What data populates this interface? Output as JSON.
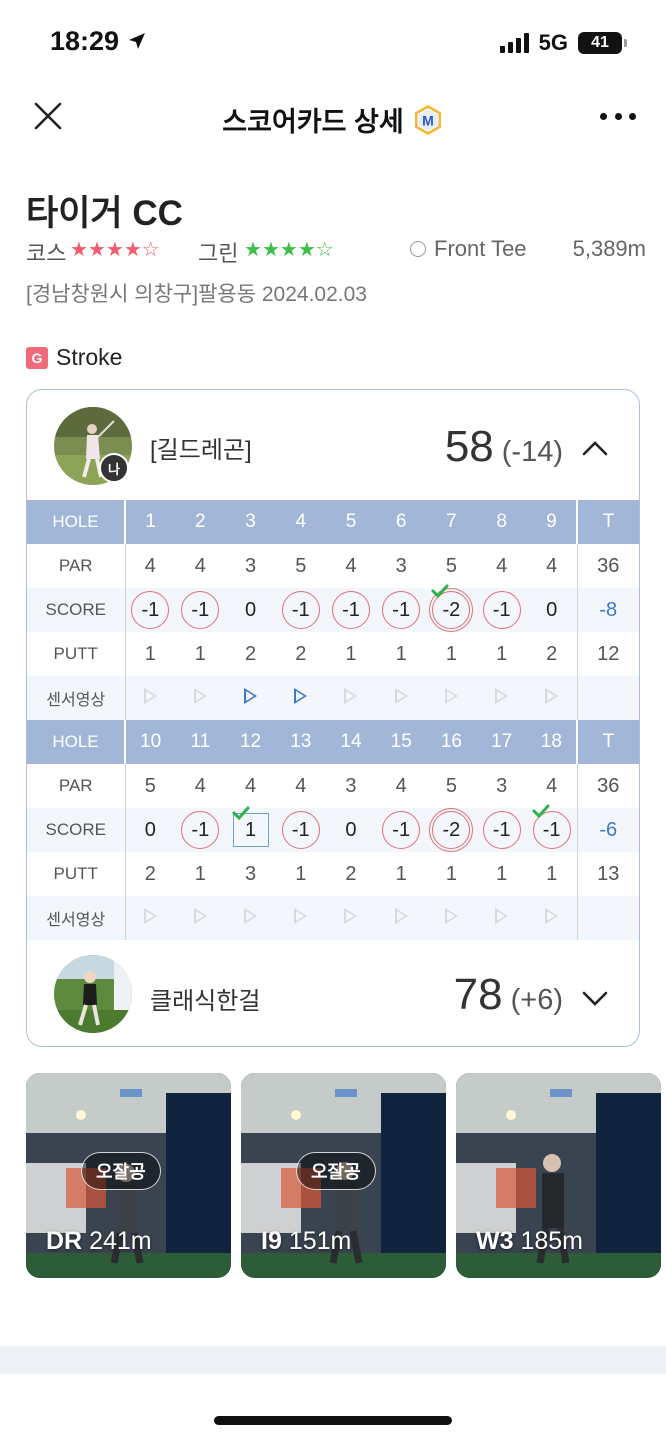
{
  "status": {
    "time": "18:29",
    "network": "5G",
    "battery": "41"
  },
  "nav": {
    "title": "스코어카드 상세",
    "badge_letter": "M"
  },
  "course": {
    "name": "타이거 CC",
    "course_label": "코스",
    "course_rating": 4,
    "green_label": "그린",
    "green_rating": 4,
    "tee": "Front Tee",
    "distance": "5,389m",
    "location": "[경남창원시 의창구]팔용동 2024.02.03"
  },
  "mode": {
    "badge": "G",
    "label": "Stroke"
  },
  "players": [
    {
      "name": "[길드레곤]",
      "score": "58",
      "diff": "(-14)",
      "me_badge": "나",
      "expanded": true
    },
    {
      "name": "클래식한걸",
      "score": "78",
      "diff": "(+6)",
      "expanded": false
    }
  ],
  "scorecard": {
    "labels": {
      "hole": "HOLE",
      "par": "PAR",
      "score": "SCORE",
      "putt": "PUTT",
      "sensor": "센서영상",
      "total": "T"
    },
    "front": {
      "holes": [
        "1",
        "2",
        "3",
        "4",
        "5",
        "6",
        "7",
        "8",
        "9"
      ],
      "par": [
        "4",
        "4",
        "3",
        "5",
        "4",
        "3",
        "5",
        "4",
        "4"
      ],
      "par_total": "36",
      "score": [
        "-1",
        "-1",
        "0",
        "-1",
        "-1",
        "-1",
        "-2",
        "-1",
        "0"
      ],
      "score_marks": [
        "circle",
        "circle",
        "none",
        "circle",
        "circle",
        "circle",
        "double",
        "circle",
        "none"
      ],
      "score_checks": [
        false,
        false,
        false,
        false,
        false,
        false,
        true,
        false,
        false
      ],
      "score_total": "-8",
      "putt": [
        "1",
        "1",
        "2",
        "2",
        "1",
        "1",
        "1",
        "1",
        "2"
      ],
      "putt_total": "12",
      "sensor_active": [
        false,
        false,
        true,
        true,
        false,
        false,
        false,
        false,
        false
      ]
    },
    "back": {
      "holes": [
        "10",
        "11",
        "12",
        "13",
        "14",
        "15",
        "16",
        "17",
        "18"
      ],
      "par": [
        "5",
        "4",
        "4",
        "4",
        "3",
        "4",
        "5",
        "3",
        "4"
      ],
      "par_total": "36",
      "score": [
        "0",
        "-1",
        "1",
        "-1",
        "0",
        "-1",
        "-2",
        "-1",
        "-1"
      ],
      "score_marks": [
        "none",
        "circle",
        "square",
        "circle",
        "none",
        "circle",
        "double",
        "circle",
        "circle"
      ],
      "score_checks": [
        false,
        false,
        true,
        false,
        false,
        false,
        false,
        false,
        true
      ],
      "score_total": "-6",
      "putt": [
        "2",
        "1",
        "3",
        "1",
        "2",
        "1",
        "1",
        "1",
        "1"
      ],
      "putt_total": "13",
      "sensor_active": [
        false,
        false,
        false,
        false,
        false,
        false,
        false,
        false,
        false
      ]
    }
  },
  "clips": [
    {
      "club": "DR",
      "distance": "241m",
      "tag": "오잘공"
    },
    {
      "club": "I9",
      "distance": "151m",
      "tag": "오잘공"
    },
    {
      "club": "W3",
      "distance": "185m",
      "tag": ""
    }
  ],
  "colors": {
    "accent": "#a2b7d8",
    "circle": "#e0707a",
    "negative": "#3e79c8",
    "star_red": "#ef5d6e",
    "star_green": "#3fbf4a"
  }
}
